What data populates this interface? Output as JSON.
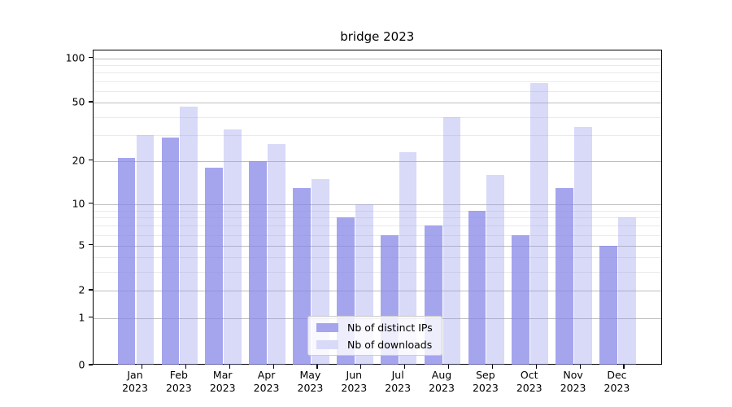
{
  "chart_data": {
    "type": "bar",
    "title": "bridge 2023",
    "categories": [
      "Jan",
      "Feb",
      "Mar",
      "Apr",
      "May",
      "Jun",
      "Jul",
      "Aug",
      "Sep",
      "Oct",
      "Nov",
      "Dec"
    ],
    "year_label": "2023",
    "series": [
      {
        "name": "Nb of distinct IPs",
        "color": "#a5a5ed",
        "fill": "rgba(137,137,232,0.76)",
        "values": [
          21,
          29,
          18,
          20,
          13,
          8,
          6,
          7,
          9,
          6,
          13,
          5
        ]
      },
      {
        "name": "Nb of downloads",
        "color": "#d9d9f8",
        "fill": "rgba(150,150,235,0.36)",
        "values": [
          30,
          47,
          33,
          26,
          15,
          10,
          23,
          40,
          16,
          68,
          34,
          8
        ]
      }
    ],
    "y_axis": {
      "scale": "log1p",
      "ticks": [
        0,
        1,
        2,
        5,
        10,
        20,
        50,
        100
      ],
      "minor_ticks": [
        3,
        4,
        6,
        7,
        8,
        9,
        30,
        40,
        60,
        70,
        80,
        90
      ],
      "range": [
        0,
        113
      ]
    },
    "x_axis": {
      "label_lines": 2
    },
    "legend": {
      "position": "lower-center"
    },
    "grid": true,
    "colors": {
      "grid_major": "#bdbdbd",
      "grid_minor": "#eaeaea",
      "spine": "#000000",
      "text": "#000000"
    }
  }
}
